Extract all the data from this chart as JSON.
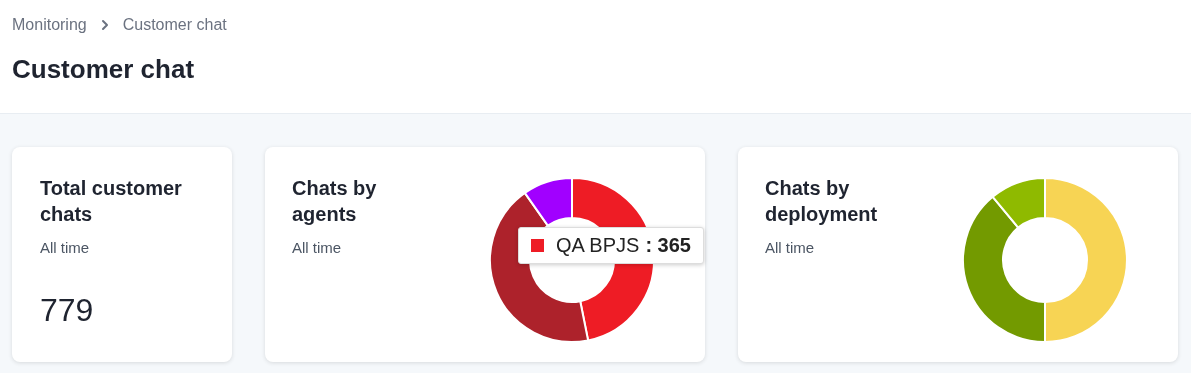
{
  "chart_data": [
    {
      "type": "other",
      "title": "Customer chat",
      "annotations": [
        "Monitoring",
        "Customer chat"
      ]
    },
    {
      "type": "other",
      "title": "Total customer chats",
      "subtitle": "All time",
      "annotations": [
        "779"
      ]
    },
    {
      "type": "donut",
      "title": "Chats by agents",
      "subtitle": "All time",
      "categories": [
        "QA BPJS",
        null,
        null
      ],
      "values": [
        365,
        338,
        76
      ],
      "colors": [
        "#ee1c25",
        "#ad222b",
        "#a100ff"
      ],
      "value_labels": [
        ": 365",
        null,
        null
      ]
    },
    {
      "type": "donut",
      "title": "Chats by deployment",
      "subtitle": "All time",
      "categories": [
        null,
        null,
        null
      ],
      "values": [
        50,
        39,
        11
      ],
      "colors": [
        "#f7d454",
        "#739a00",
        "#8fba00"
      ]
    }
  ]
}
